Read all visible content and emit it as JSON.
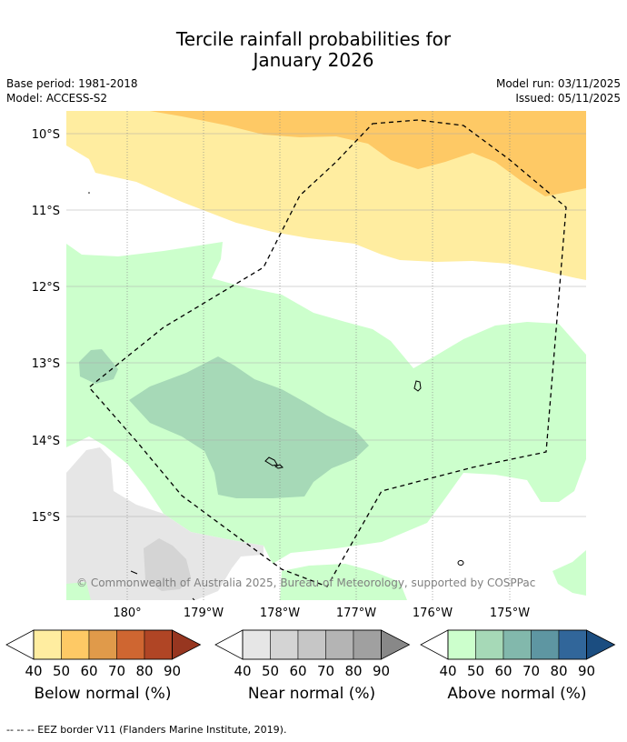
{
  "title_line1": "Tercile rainfall probabilities for",
  "title_line2": "January 2026",
  "base_period": "Base period: 1981-2018",
  "model": "Model: ACCESS-S2",
  "model_run": "Model run: 03/11/2025",
  "issued": "Issued: 05/11/2025",
  "lat_labels": [
    "10°S",
    "11°S",
    "12°S",
    "13°S",
    "14°S",
    "15°S"
  ],
  "lon_labels": [
    "180°",
    "179°W",
    "178°W",
    "177°W",
    "176°W",
    "175°W"
  ],
  "copyright": "© Commonwealth of Australia 2025, Bureau of Meteorology, supported by COSPPac",
  "colorbars": [
    {
      "caption": "Below normal (%)",
      "ticks": [
        "40",
        "50",
        "60",
        "70",
        "80",
        "90"
      ],
      "colors": [
        "#ffeda0",
        "#fec965",
        "#e09a4a",
        "#cf6631",
        "#b04525",
        "#973620"
      ]
    },
    {
      "caption": "Near normal (%)",
      "ticks": [
        "40",
        "50",
        "60",
        "70",
        "80",
        "90"
      ],
      "colors": [
        "#e6e6e6",
        "#d4d4d4",
        "#c6c6c6",
        "#b4b4b4",
        "#a0a0a0",
        "#888888"
      ]
    },
    {
      "caption": "Above normal (%)",
      "ticks": [
        "40",
        "50",
        "60",
        "70",
        "80",
        "90"
      ],
      "colors": [
        "#ccffcc",
        "#a6d9b7",
        "#82b8ac",
        "#5e96a2",
        "#31669a",
        "#1b4d80"
      ]
    }
  ],
  "footnote": "--  --  -- EEZ border V11 (Flanders Marine Institute, 2019)."
}
